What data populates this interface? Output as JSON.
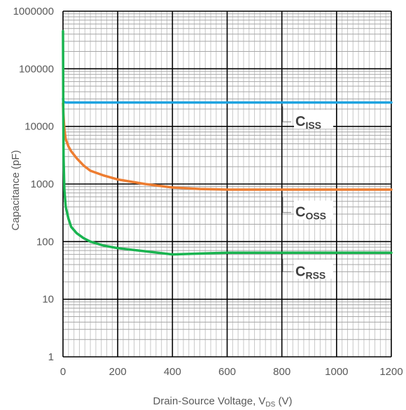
{
  "chart_data": {
    "type": "line",
    "xlabel": "Drain-Source Voltage, V",
    "xlabel_sub": "DS",
    "xlabel_unit": " (V)",
    "ylabel": "Capacitance (pF)",
    "xlim": [
      0,
      1200
    ],
    "ylim": [
      1,
      1000000
    ],
    "y_scale": "log",
    "grid": true,
    "x_ticks": [
      "0",
      "200",
      "400",
      "600",
      "800",
      "1000",
      "1200"
    ],
    "y_ticks": [
      "1",
      "10",
      "100",
      "1000",
      "10000",
      "100000",
      "1000000"
    ],
    "series": [
      {
        "name": "C",
        "name_sub": "ISS",
        "color": "#1fa3e0",
        "x": [
          0,
          1,
          2,
          5,
          10,
          20,
          50,
          100,
          200,
          400,
          600,
          800,
          1000,
          1200
        ],
        "y": [
          30000,
          28000,
          27000,
          26500,
          26000,
          26000,
          26000,
          26000,
          26000,
          26000,
          26000,
          26000,
          26000,
          26000
        ]
      },
      {
        "name": "C",
        "name_sub": "OSS",
        "color": "#ed7d31",
        "x": [
          0,
          1,
          5,
          10,
          20,
          30,
          50,
          75,
          100,
          150,
          200,
          300,
          400,
          500,
          600,
          800,
          1000,
          1200
        ],
        "y": [
          25000,
          18000,
          9000,
          6000,
          4500,
          3700,
          2800,
          2100,
          1700,
          1400,
          1200,
          1000,
          870,
          820,
          800,
          800,
          800,
          800
        ]
      },
      {
        "name": "C",
        "name_sub": "RSS",
        "color": "#1ab450",
        "x": [
          0,
          0.5,
          1,
          2,
          5,
          10,
          20,
          30,
          50,
          75,
          100,
          150,
          200,
          300,
          400,
          500,
          600,
          800,
          1000,
          1200
        ],
        "y": [
          450000,
          100000,
          20000,
          3000,
          800,
          400,
          250,
          180,
          140,
          115,
          100,
          85,
          77,
          68,
          60,
          62,
          64,
          64,
          64,
          64
        ]
      }
    ]
  }
}
